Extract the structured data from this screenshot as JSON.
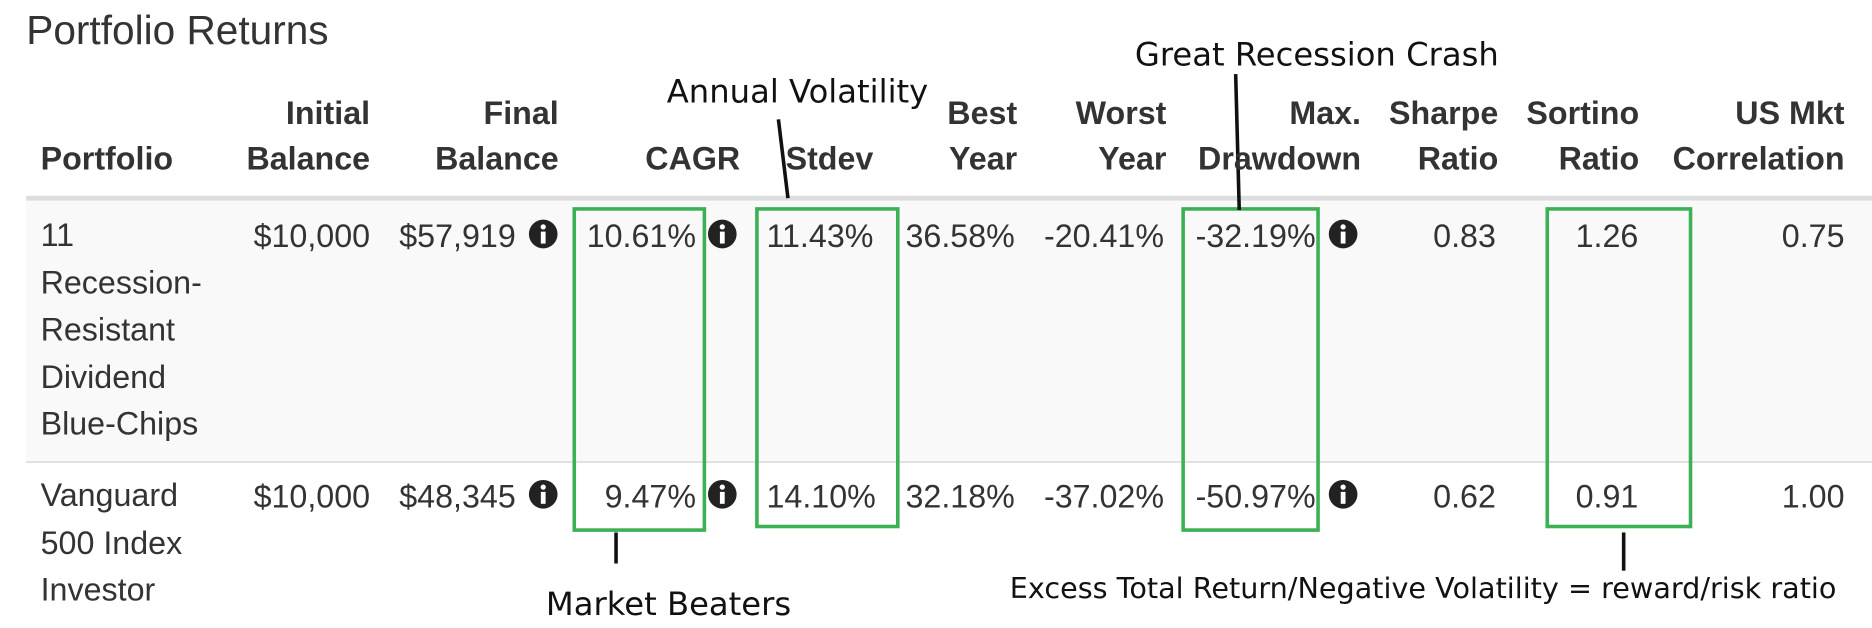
{
  "title": "Portfolio Returns",
  "table": {
    "headers": [
      [
        "Portfolio"
      ],
      [
        "Initial",
        "Balance"
      ],
      [
        "Final",
        "Balance"
      ],
      [
        "CAGR"
      ],
      [
        "Stdev"
      ],
      [
        "Best",
        "Year"
      ],
      [
        "Worst",
        "Year"
      ],
      [
        "Max.",
        "Drawdown"
      ],
      [
        "Sharpe",
        "Ratio"
      ],
      [
        "Sortino",
        "Ratio"
      ],
      [
        "US Mkt",
        "Correlation"
      ]
    ],
    "rows": [
      [
        "11 Recession-Resistant Dividend Blue-Chips",
        "$10,000",
        "$57,919",
        "10.61%",
        "11.43%",
        "36.58%",
        "-20.41%",
        "-32.19%",
        "0.83",
        "1.26",
        "0.75"
      ],
      [
        "Vanguard 500 Index Investor",
        "$10,000",
        "$48,345",
        "9.47%",
        "14.10%",
        "32.18%",
        "-37.02%",
        "-50.97%",
        "0.62",
        "0.91",
        "1.00"
      ]
    ]
  },
  "annotations": {
    "annual_volatility": "Annual Volatility",
    "great_recession": "Great Recession Crash",
    "market_beaters": "Market Beaters",
    "sortino_note": "Excess Total Return/Negative Volatility = reward/risk ratio"
  }
}
